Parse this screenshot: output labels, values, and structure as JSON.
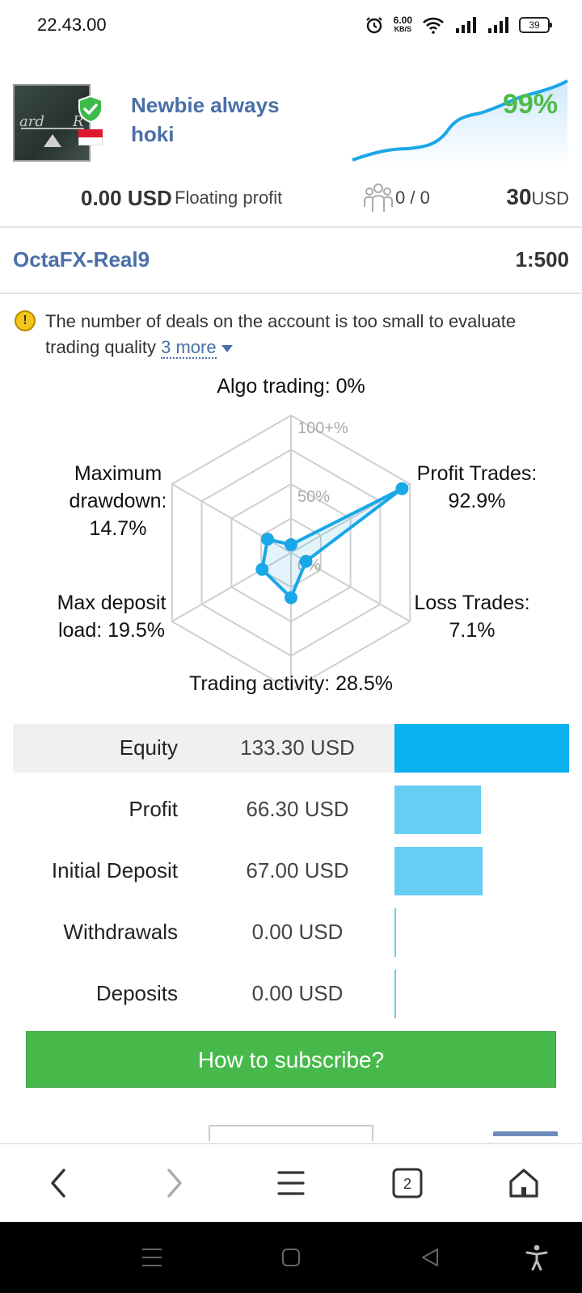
{
  "status_bar": {
    "time": "22.43.00",
    "net_speed_value": "6.00",
    "net_speed_unit": "KB/S",
    "battery": "39"
  },
  "signal": {
    "name": "Newbie always hoki",
    "gain": "99%",
    "balance": "0.00 USD",
    "floating_label": "Floating profit",
    "subscribers": "0 / 0",
    "price_value": "30",
    "price_currency": "USD",
    "server": "OctaFX-Real9",
    "leverage": "1:500"
  },
  "warning": {
    "text": "The number of deals on the account is too small to evaluate trading quality",
    "more_link": "3 more"
  },
  "radar": {
    "scale_labels": [
      "100+%",
      "50%",
      "0%"
    ],
    "axes": [
      {
        "label_lines": [
          "Algo trading: 0%"
        ],
        "value": 0
      },
      {
        "label_lines": [
          "Profit Trades:",
          "92.9%"
        ],
        "value": 92.9
      },
      {
        "label_lines": [
          "Loss Trades:",
          "7.1%"
        ],
        "value": 7.1
      },
      {
        "label_lines": [
          "Trading activity: 28.5%"
        ],
        "value": 28.5
      },
      {
        "label_lines": [
          "Max deposit",
          "load: 19.5%"
        ],
        "value": 19.5
      },
      {
        "label_lines": [
          "Maximum",
          "drawdown:",
          "14.7%"
        ],
        "value": 14.7
      }
    ],
    "color": "#1aa7e8"
  },
  "summary": [
    {
      "label": "Equity",
      "value": "133.30 USD",
      "amount": 133.3,
      "color": "#0ab0ef",
      "highlight": true
    },
    {
      "label": "Profit",
      "value": "66.30 USD",
      "amount": 66.3,
      "color": "#66cdf4",
      "highlight": false
    },
    {
      "label": "Initial Deposit",
      "value": "67.00 USD",
      "amount": 67.0,
      "color": "#66cdf4",
      "highlight": false
    },
    {
      "label": "Withdrawals",
      "value": "0.00 USD",
      "amount": 0,
      "color": "#66cdf4",
      "highlight": false
    },
    {
      "label": "Deposits",
      "value": "0.00 USD",
      "amount": 0,
      "color": "#66cdf4",
      "highlight": false
    }
  ],
  "cta": {
    "label": "How to subscribe?"
  },
  "browser_nav": {
    "tabs_count": "2"
  },
  "icons": {
    "verified": "verified-shield-icon",
    "flag": "indonesia-flag-icon",
    "subscribers": "subscribers-icon",
    "warning": "warning-icon",
    "back": "back-arrow-icon",
    "forward": "forward-arrow-icon",
    "menu": "menu-icon",
    "tabs": "tabs-icon",
    "home": "home-icon"
  }
}
